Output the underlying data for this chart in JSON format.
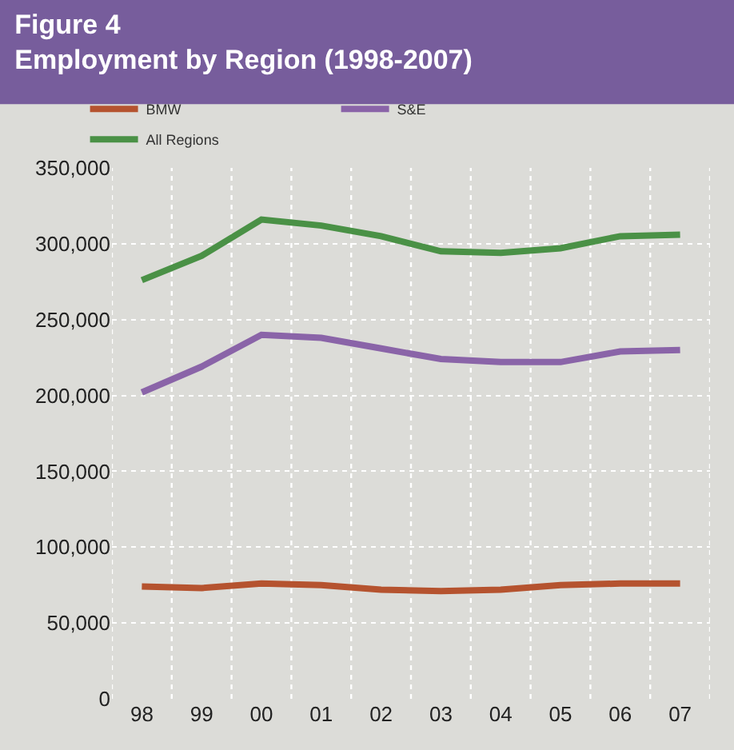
{
  "chart_data": {
    "type": "line",
    "title": "Figure 4",
    "subtitle": "Employment by Region (1998-2007)",
    "categories": [
      "98",
      "99",
      "00",
      "01",
      "02",
      "03",
      "04",
      "05",
      "06",
      "07"
    ],
    "series": [
      {
        "name": "BMW",
        "color": "#b5532f",
        "values": [
          74000,
          73000,
          76000,
          75000,
          72000,
          71000,
          72000,
          75000,
          76000,
          76000
        ]
      },
      {
        "name": "S&E",
        "color": "#8a64a8",
        "values": [
          202000,
          219000,
          240000,
          238000,
          231000,
          224000,
          222000,
          222000,
          229000,
          230000
        ]
      },
      {
        "name": "All Regions",
        "color": "#4a9146",
        "values": [
          276000,
          292000,
          316000,
          312000,
          305000,
          295000,
          294000,
          297000,
          305000,
          306000
        ]
      }
    ],
    "ylim": [
      0,
      350000
    ],
    "yticks": [
      {
        "value": 0,
        "label": "0"
      },
      {
        "value": 50000,
        "label": "50,000"
      },
      {
        "value": 100000,
        "label": "100,000"
      },
      {
        "value": 150000,
        "label": "150,000"
      },
      {
        "value": 200000,
        "label": "200,000"
      },
      {
        "value": 250000,
        "label": "250,000"
      },
      {
        "value": 300000,
        "label": "300,000"
      },
      {
        "value": 350000,
        "label": "350,000"
      }
    ],
    "grid": true,
    "legend": "top",
    "marker": "none",
    "line_style": "solid"
  }
}
